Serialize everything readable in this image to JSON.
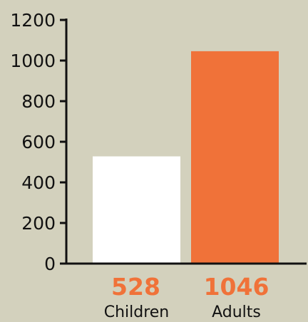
{
  "chart_data": {
    "type": "bar",
    "categories": [
      "Children",
      "Adults"
    ],
    "values": [
      528,
      1046
    ],
    "value_labels": [
      "528",
      "1046"
    ],
    "ylim": [
      0,
      1200
    ],
    "yticks": [
      0,
      200,
      400,
      600,
      800,
      1000,
      1200
    ],
    "ytick_labels": [
      "0",
      "200",
      "400",
      "600",
      "800",
      "1000",
      "1200"
    ],
    "grid": false,
    "title": "",
    "xlabel": "",
    "ylabel": "",
    "colors": {
      "background": "#d3d1bd",
      "axis": "#111111",
      "bars": [
        "#ffffff",
        "#f07239"
      ],
      "value_label": "#f07239",
      "text": "#111111"
    }
  }
}
